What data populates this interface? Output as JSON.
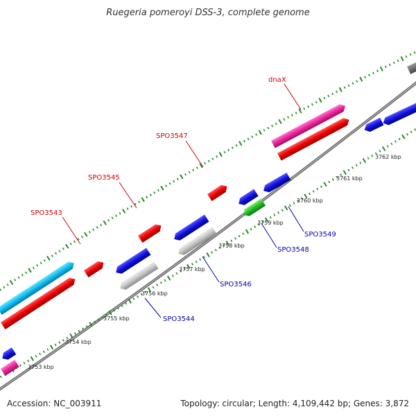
{
  "title": "Ruegeria pomeroyi DSS-3, complete genome",
  "footer": {
    "accession": "Accession: NC_003911",
    "topology": "Topology: circular; Length: 4,109,442 bp; Genes: 3,872"
  },
  "colors": {
    "forward_label": "#cc0000",
    "reverse_label": "#0000aa",
    "backbone": "#888888",
    "tick": "#228822"
  },
  "scale_labels": [
    "3753 kbp",
    "3754 kbp",
    "3755 kbp",
    "3756 kbp",
    "3757 kbp",
    "3758 kbp",
    "3759 kbp",
    "3760 kbp",
    "3761 kbp",
    "3762 kbp"
  ],
  "forward_gene_labels": [
    "SPO3543",
    "SPO3545",
    "SPO3547",
    "dnaX"
  ],
  "reverse_gene_labels": [
    "SPO3544",
    "SPO3546",
    "SPO3548",
    "SPO3549"
  ]
}
